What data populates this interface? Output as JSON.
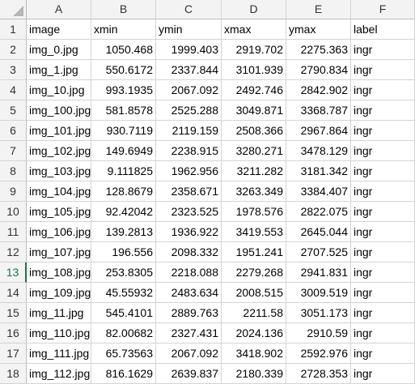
{
  "columns": [
    "A",
    "B",
    "C",
    "D",
    "E",
    "F"
  ],
  "active_row": 13,
  "rows": [
    {
      "num": "1",
      "cells": [
        "image",
        "xmin",
        "ymin",
        "xmax",
        "ymax",
        "label"
      ]
    },
    {
      "num": "2",
      "cells": [
        "img_0.jpg",
        "1050.468",
        "1999.403",
        "2919.702",
        "2275.363",
        "ingr"
      ]
    },
    {
      "num": "3",
      "cells": [
        "img_1.jpg",
        "550.6172",
        "2337.844",
        "3101.939",
        "2790.834",
        "ingr"
      ]
    },
    {
      "num": "4",
      "cells": [
        "img_10.jpg",
        "993.1935",
        "2067.092",
        "2492.746",
        "2842.902",
        "ingr"
      ]
    },
    {
      "num": "5",
      "cells": [
        "img_100.jpg",
        "581.8578",
        "2525.288",
        "3049.871",
        "3368.787",
        "ingr"
      ]
    },
    {
      "num": "6",
      "cells": [
        "img_101.jpg",
        "930.7119",
        "2119.159",
        "2508.366",
        "2967.864",
        "ingr"
      ]
    },
    {
      "num": "7",
      "cells": [
        "img_102.jpg",
        "149.6949",
        "2238.915",
        "3280.271",
        "3478.129",
        "ingr"
      ]
    },
    {
      "num": "8",
      "cells": [
        "img_103.jpg",
        "9.111825",
        "1962.956",
        "3211.282",
        "3181.342",
        "ingr"
      ]
    },
    {
      "num": "9",
      "cells": [
        "img_104.jpg",
        "128.8679",
        "2358.671",
        "3263.349",
        "3384.407",
        "ingr"
      ]
    },
    {
      "num": "10",
      "cells": [
        "img_105.jpg",
        "92.42042",
        "2323.525",
        "1978.576",
        "2822.075",
        "ingr"
      ]
    },
    {
      "num": "11",
      "cells": [
        "img_106.jpg",
        "139.2813",
        "1936.922",
        "3419.553",
        "2645.044",
        "ingr"
      ]
    },
    {
      "num": "12",
      "cells": [
        "img_107.jpg",
        "196.556",
        "2098.332",
        "1951.241",
        "2707.525",
        "ingr"
      ]
    },
    {
      "num": "13",
      "cells": [
        "img_108.jpg",
        "253.8305",
        "2218.088",
        "2279.268",
        "2941.831",
        "ingr"
      ]
    },
    {
      "num": "14",
      "cells": [
        "img_109.jpg",
        "45.55932",
        "2483.634",
        "2008.515",
        "3009.519",
        "ingr"
      ]
    },
    {
      "num": "15",
      "cells": [
        "img_11.jpg",
        "545.4101",
        "2889.763",
        "2211.58",
        "3051.173",
        "ingr"
      ]
    },
    {
      "num": "16",
      "cells": [
        "img_110.jpg",
        "82.00682",
        "2327.431",
        "2024.136",
        "2910.59",
        "ingr"
      ]
    },
    {
      "num": "17",
      "cells": [
        "img_111.jpg",
        "65.73563",
        "2067.092",
        "3418.902",
        "2592.976",
        "ingr"
      ]
    },
    {
      "num": "18",
      "cells": [
        "img_112.jpg",
        "816.1629",
        "2639.837",
        "2180.339",
        "2728.353",
        "ingr"
      ]
    }
  ]
}
